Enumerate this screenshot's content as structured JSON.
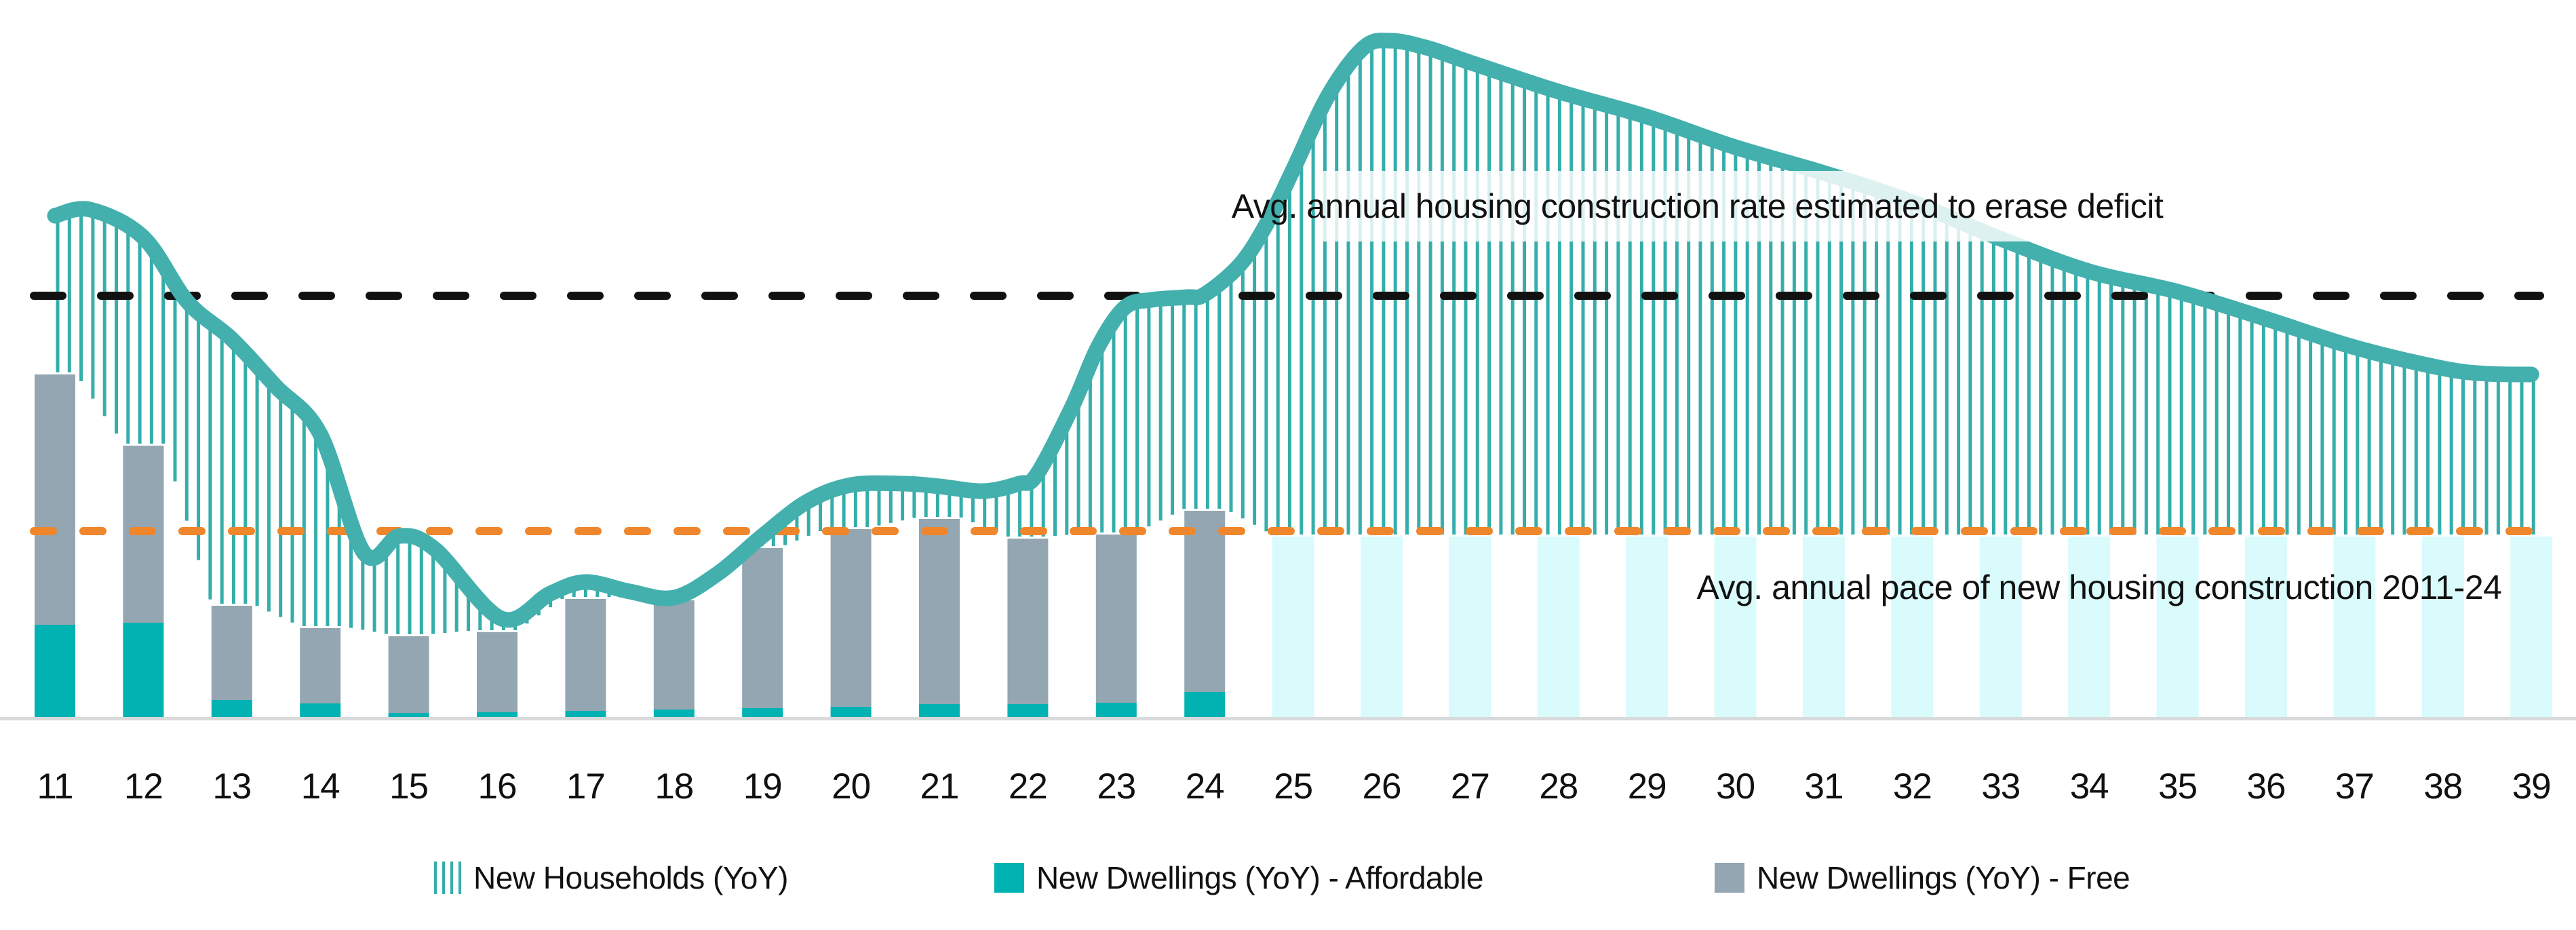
{
  "annotations": {
    "deficit_line": "Avg. annual housing construction rate estimated to erase deficit",
    "pace_line": "Avg. annual pace of new housing construction 2011-24"
  },
  "legend": {
    "items": [
      {
        "icon": "hatch-lines-icon",
        "label": "New Households (YoY)"
      },
      {
        "icon": "teal-square-icon",
        "label": "New Dwellings (YoY) - Affordable"
      },
      {
        "icon": "gray-square-icon",
        "label": "New Dwellings (YoY) - Free"
      }
    ]
  },
  "colors": {
    "curve": "#43B0AD",
    "hatch": "#35AEAB",
    "affordable_bar": "#00B2B2",
    "free_bar": "#94A6B1",
    "projected_bar": "#D9FBFC",
    "deficit_dash": "#111111",
    "pace_dash": "#F0862B",
    "axis_line": "#D8DADB",
    "text": "#121212"
  },
  "chart_data": {
    "type": "composite: hatched line-area (households) + stacked bars (dwellings) + projected bars",
    "x_unit": "year (2011-2039, shown as 11-39)",
    "y_unit": "relative units (no y-axis drawn; values estimated from pixel heights above baseline)",
    "years": [
      "11",
      "12",
      "13",
      "14",
      "15",
      "16",
      "17",
      "18",
      "19",
      "20",
      "21",
      "22",
      "23",
      "24",
      "25",
      "26",
      "27",
      "28",
      "29",
      "30",
      "31",
      "32",
      "33",
      "34",
      "35",
      "36",
      "37",
      "38",
      "39"
    ],
    "households_curve_points": [
      [
        11,
        740
      ],
      [
        11.4,
        749
      ],
      [
        12,
        708
      ],
      [
        12.5,
        613
      ],
      [
        13,
        558
      ],
      [
        13.5,
        488
      ],
      [
        14,
        418
      ],
      [
        14.5,
        242
      ],
      [
        14.9,
        268
      ],
      [
        15.3,
        248
      ],
      [
        16.05,
        146
      ],
      [
        16.6,
        183
      ],
      [
        17,
        200
      ],
      [
        17.5,
        186
      ],
      [
        18,
        177
      ],
      [
        18.5,
        213
      ],
      [
        19,
        268
      ],
      [
        19.5,
        318
      ],
      [
        20,
        343
      ],
      [
        20.6,
        345
      ],
      [
        21,
        341
      ],
      [
        21.5,
        334
      ],
      [
        21.9,
        345
      ],
      [
        22.1,
        358
      ],
      [
        22.5,
        458
      ],
      [
        22.8,
        548
      ],
      [
        23.1,
        605
      ],
      [
        23.4,
        616
      ],
      [
        23.8,
        620
      ],
      [
        24,
        624
      ],
      [
        24.4,
        668
      ],
      [
        24.7,
        728
      ],
      [
        25,
        808
      ],
      [
        25.4,
        918
      ],
      [
        25.8,
        988
      ],
      [
        26.1,
        998
      ],
      [
        26.5,
        988
      ],
      [
        27,
        966
      ],
      [
        28,
        923
      ],
      [
        29,
        886
      ],
      [
        30,
        841
      ],
      [
        31,
        803
      ],
      [
        32,
        760
      ],
      [
        33,
        706
      ],
      [
        34,
        658
      ],
      [
        35,
        628
      ],
      [
        36,
        588
      ],
      [
        37,
        546
      ],
      [
        38,
        515
      ],
      [
        38.5,
        507
      ],
      [
        39,
        506
      ]
    ],
    "stacked_bars": {
      "years": [
        11,
        12,
        13,
        14,
        15,
        16,
        17,
        18,
        19,
        20,
        21,
        22,
        23,
        24
      ],
      "affordable": [
        137,
        140,
        26,
        21,
        7,
        8,
        10,
        12,
        14,
        16,
        20,
        20,
        22,
        38
      ],
      "free": [
        369,
        261,
        139,
        111,
        113,
        118,
        165,
        161,
        236,
        262,
        273,
        244,
        248,
        267
      ]
    },
    "projected_bars": {
      "years": [
        25,
        26,
        27,
        28,
        29,
        30,
        31,
        32,
        33,
        34,
        35,
        36,
        37,
        38,
        39
      ],
      "value_each": 267
    },
    "reference_lines": {
      "deficit_rate": {
        "value": 622,
        "style": "black dashed",
        "label_key": "annotations.deficit_line"
      },
      "avg_pace_2011_24": {
        "value": 275,
        "style": "orange dashed",
        "label_key": "annotations.pace_line"
      }
    },
    "legend_position": "bottom-center",
    "grid": "off"
  }
}
